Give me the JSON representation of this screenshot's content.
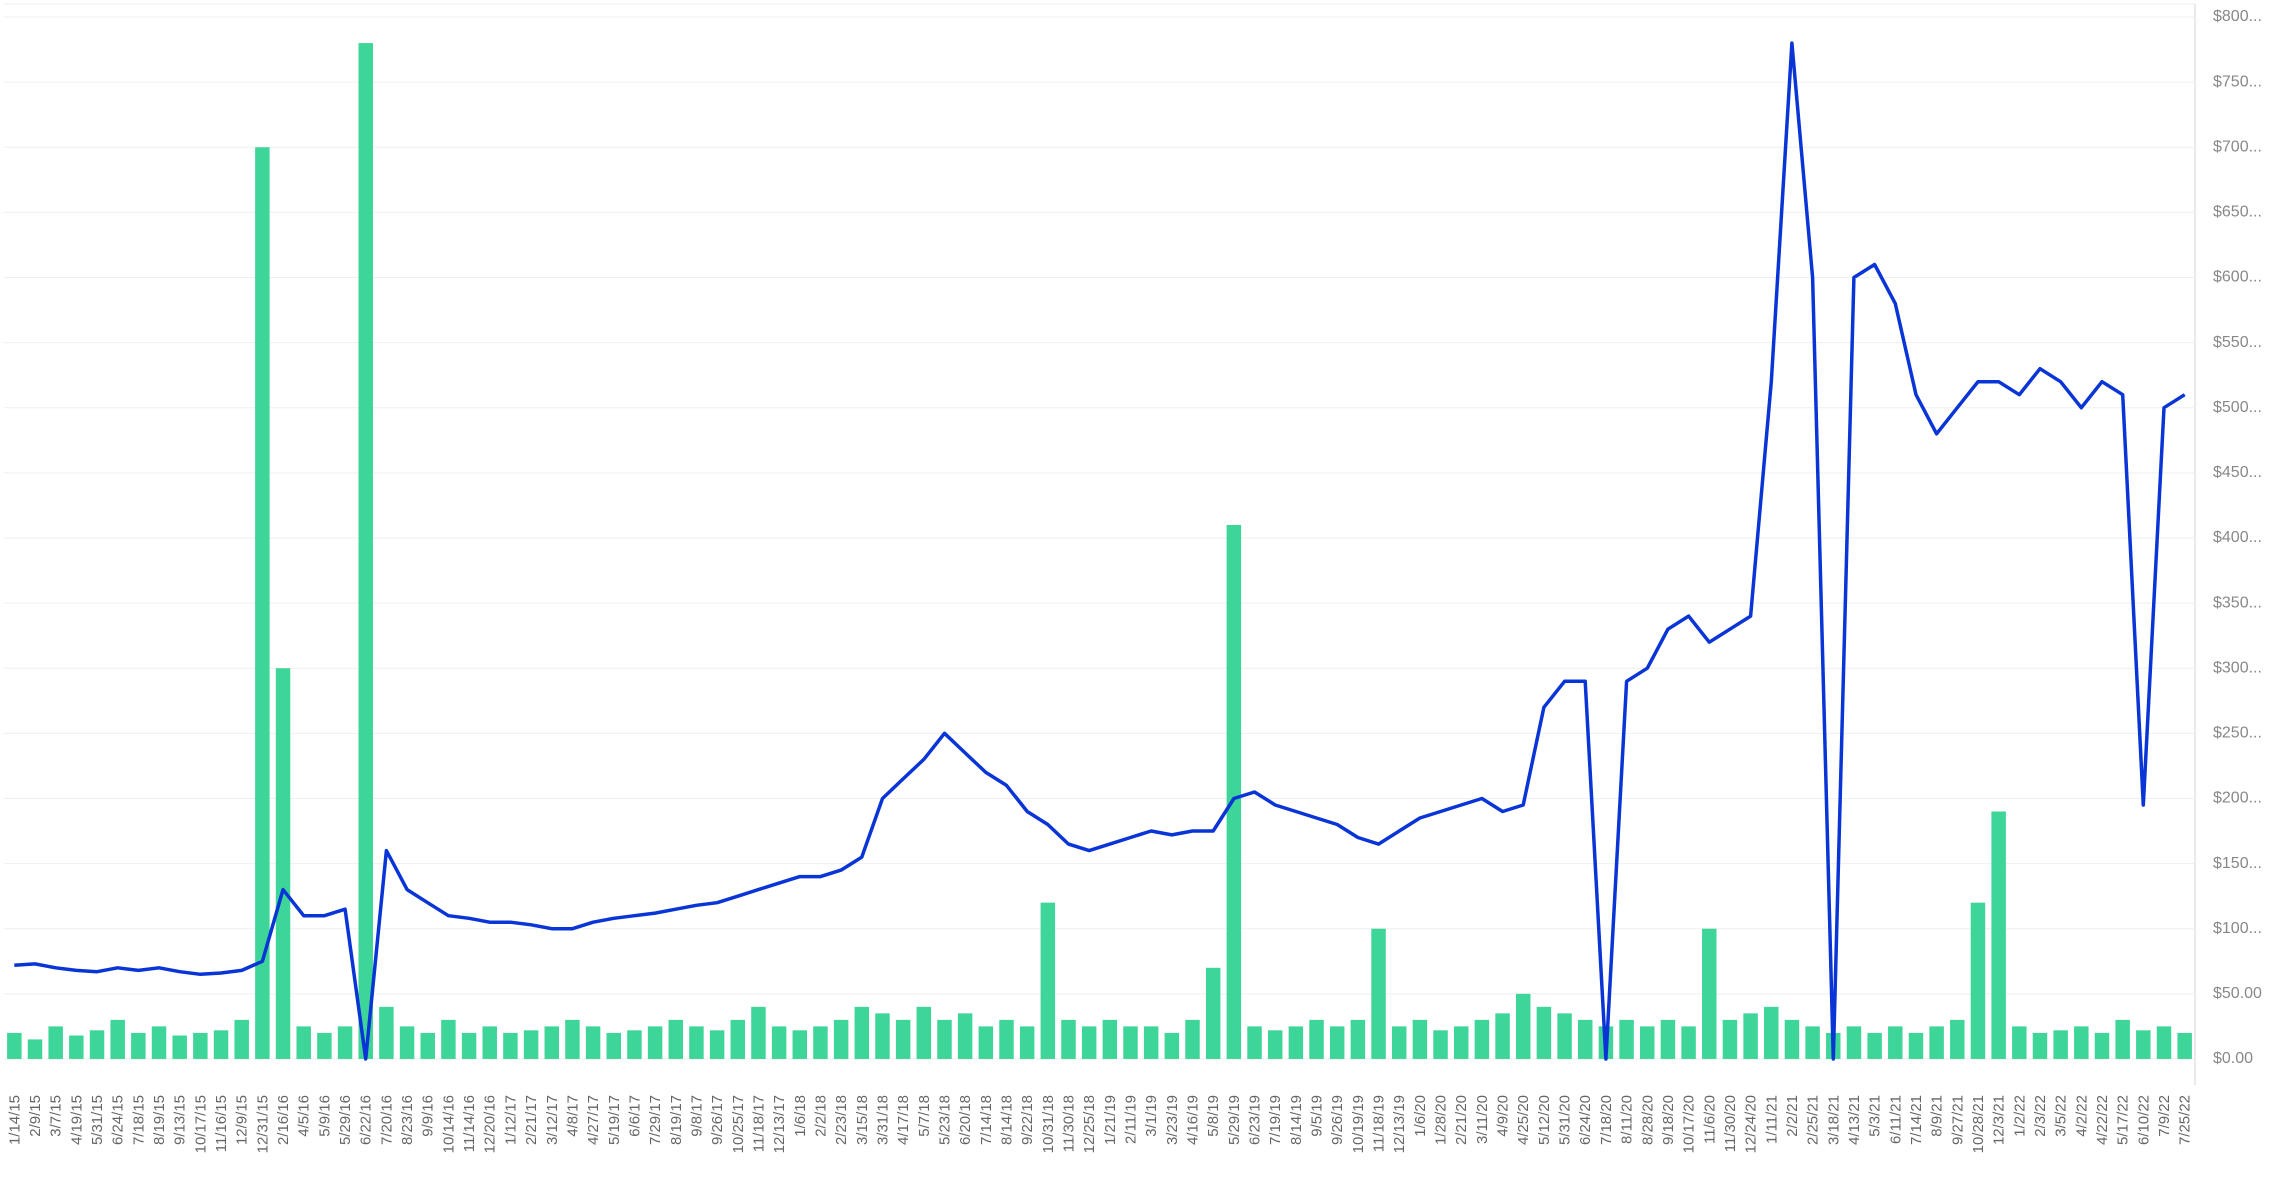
{
  "chart_data": {
    "type": "line-bar",
    "categories": [
      "1/14/15",
      "2/9/15",
      "3/7/15",
      "4/19/15",
      "5/31/15",
      "6/24/15",
      "7/18/15",
      "8/19/15",
      "9/13/15",
      "10/17/15",
      "11/16/15",
      "12/9/15",
      "12/31/15",
      "2/16/16",
      "4/5/16",
      "5/9/16",
      "5/29/16",
      "6/22/16",
      "7/20/16",
      "8/23/16",
      "9/9/16",
      "10/14/16",
      "11/14/16",
      "12/20/16",
      "1/12/17",
      "2/21/17",
      "3/12/17",
      "4/8/17",
      "4/27/17",
      "5/19/17",
      "6/6/17",
      "7/29/17",
      "8/19/17",
      "9/8/17",
      "9/26/17",
      "10/25/17",
      "11/18/17",
      "12/13/17",
      "1/6/18",
      "2/2/18",
      "2/23/18",
      "3/15/18",
      "3/31/18",
      "4/17/18",
      "5/7/18",
      "5/23/18",
      "6/20/18",
      "7/14/18",
      "8/14/18",
      "9/22/18",
      "10/31/18",
      "11/30/18",
      "12/25/18",
      "1/21/19",
      "2/11/19",
      "3/1/19",
      "3/23/19",
      "4/16/19",
      "5/8/19",
      "5/29/19",
      "6/23/19",
      "7/19/19",
      "8/14/19",
      "9/5/19",
      "9/26/19",
      "10/19/19",
      "11/18/19",
      "12/13/19",
      "1/6/20",
      "1/28/20",
      "2/21/20",
      "3/11/20",
      "4/9/20",
      "4/25/20",
      "5/12/20",
      "5/31/20",
      "6/24/20",
      "7/18/20",
      "8/11/20",
      "8/28/20",
      "9/18/20",
      "10/17/20",
      "11/6/20",
      "11/30/20",
      "12/24/20",
      "1/11/21",
      "2/2/21",
      "2/25/21",
      "3/18/21",
      "4/13/21",
      "5/3/21",
      "6/11/21",
      "7/14/21",
      "8/9/21",
      "9/27/21",
      "10/28/21",
      "12/3/21",
      "1/2/22",
      "2/3/22",
      "3/5/22",
      "4/2/22",
      "4/22/22",
      "5/17/22",
      "6/10/22",
      "7/9/22",
      "7/25/22"
    ],
    "series": [
      {
        "kind": "bar",
        "color": "#3ed598",
        "values": [
          20,
          15,
          25,
          18,
          22,
          30,
          20,
          25,
          18,
          20,
          22,
          30,
          700,
          300,
          25,
          20,
          25,
          780,
          40,
          25,
          20,
          30,
          20,
          25,
          20,
          22,
          25,
          30,
          25,
          20,
          22,
          25,
          30,
          25,
          22,
          30,
          40,
          25,
          22,
          25,
          30,
          40,
          35,
          30,
          40,
          30,
          35,
          25,
          30,
          25,
          120,
          30,
          25,
          30,
          25,
          25,
          20,
          30,
          70,
          410,
          25,
          22,
          25,
          30,
          25,
          30,
          100,
          25,
          30,
          22,
          25,
          30,
          35,
          50,
          40,
          35,
          30,
          25,
          30,
          25,
          30,
          25,
          100,
          30,
          35,
          40,
          30,
          25,
          20,
          25,
          20,
          25,
          20,
          25,
          30,
          120,
          190,
          25,
          20,
          22,
          25,
          20,
          30,
          22,
          25,
          20
        ]
      },
      {
        "kind": "line",
        "color": "#0a35d6",
        "values": [
          72,
          73,
          70,
          68,
          67,
          70,
          68,
          70,
          67,
          65,
          66,
          68,
          75,
          130,
          110,
          110,
          115,
          0,
          160,
          130,
          120,
          110,
          108,
          105,
          105,
          103,
          100,
          100,
          105,
          108,
          110,
          112,
          115,
          118,
          120,
          125,
          130,
          135,
          140,
          140,
          145,
          155,
          200,
          215,
          230,
          250,
          235,
          220,
          210,
          190,
          180,
          165,
          160,
          165,
          170,
          175,
          172,
          175,
          175,
          200,
          205,
          195,
          190,
          185,
          180,
          170,
          165,
          175,
          185,
          190,
          195,
          200,
          190,
          195,
          270,
          290,
          290,
          0,
          290,
          300,
          330,
          340,
          320,
          330,
          340,
          520,
          780,
          600,
          0,
          600,
          610,
          580,
          510,
          480,
          500,
          520,
          520,
          510,
          530,
          520,
          500,
          520,
          510,
          195,
          500,
          510
        ]
      }
    ],
    "ylim": [
      -20,
      810
    ],
    "yticks": [
      {
        "value": 0,
        "label": "$0.00"
      },
      {
        "value": 50,
        "label": "$50.00"
      },
      {
        "value": 100,
        "label": "$100..."
      },
      {
        "value": 150,
        "label": "$150..."
      },
      {
        "value": 200,
        "label": "$200..."
      },
      {
        "value": 250,
        "label": "$250..."
      },
      {
        "value": 300,
        "label": "$300..."
      },
      {
        "value": 350,
        "label": "$350..."
      },
      {
        "value": 400,
        "label": "$400..."
      },
      {
        "value": 450,
        "label": "$450..."
      },
      {
        "value": 500,
        "label": "$500..."
      },
      {
        "value": 550,
        "label": "$550..."
      },
      {
        "value": 600,
        "label": "$600..."
      },
      {
        "value": 650,
        "label": "$650..."
      },
      {
        "value": 700,
        "label": "$700..."
      },
      {
        "value": 750,
        "label": "$750..."
      },
      {
        "value": 800,
        "label": "$800..."
      }
    ],
    "grid": true
  }
}
